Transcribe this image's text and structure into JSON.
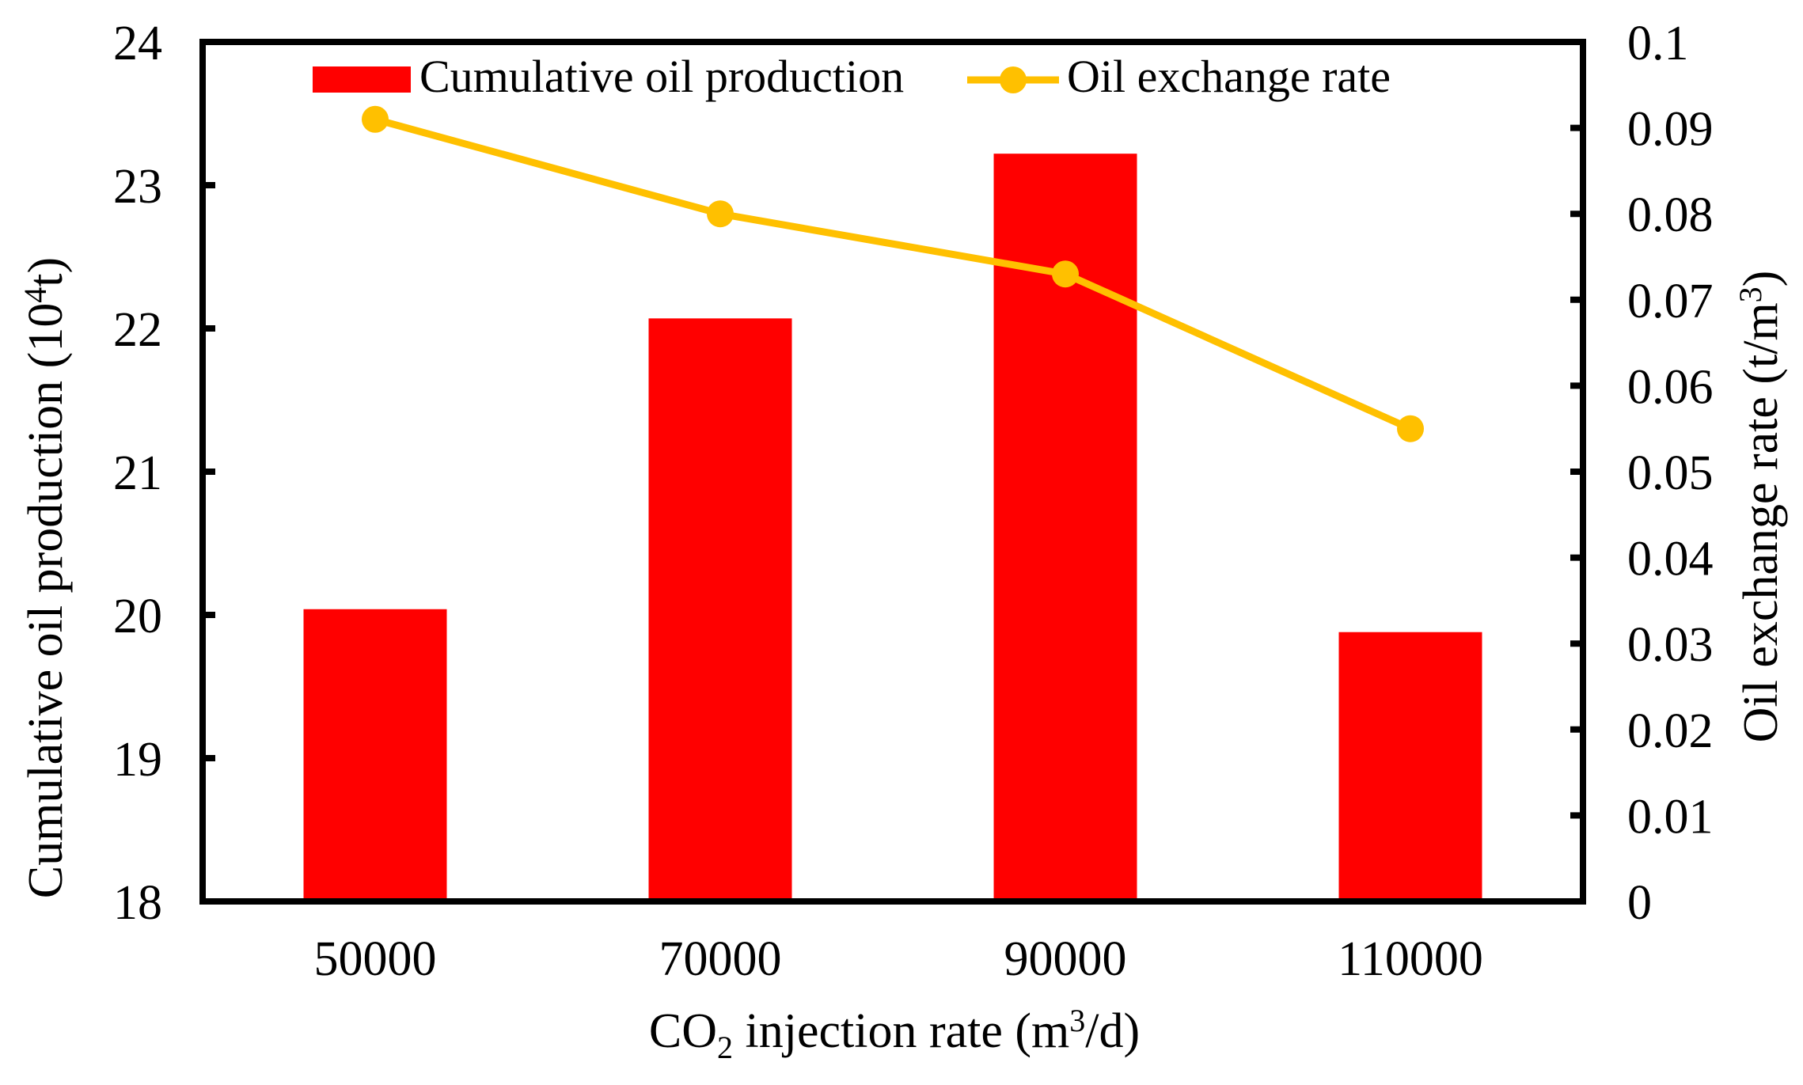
{
  "chart_data": {
    "type": "bar+line combo",
    "categories": [
      "50000",
      "70000",
      "90000",
      "110000"
    ],
    "series": [
      {
        "name": "Cumulative oil production",
        "type": "bar",
        "axis": "left",
        "color": "#FF0000",
        "values": [
          20.04,
          22.07,
          23.22,
          19.88
        ]
      },
      {
        "name": "Oil exchange rate",
        "type": "line",
        "axis": "right",
        "color": "#FFC000",
        "values": [
          0.091,
          0.08,
          0.073,
          0.055
        ]
      }
    ],
    "x_axis": {
      "title": "CO₂ injection rate (m³/d)",
      "title_segments": [
        {
          "t": "CO"
        },
        {
          "t": "2",
          "sub": true
        },
        {
          "t": " injection rate (m"
        },
        {
          "t": "3",
          "sup": true
        },
        {
          "t": "/d)"
        }
      ],
      "tick_labels": [
        "50000",
        "70000",
        "90000",
        "110000"
      ]
    },
    "left_axis": {
      "title": "Cumulative oil production (10⁴t)",
      "title_segments": [
        {
          "t": "Cumulative oil production (10"
        },
        {
          "t": "4",
          "sup": true
        },
        {
          "t": "t)"
        }
      ],
      "min": 18,
      "max": 24,
      "step": 1,
      "ticks": [
        "18",
        "19",
        "20",
        "21",
        "22",
        "23",
        "24"
      ]
    },
    "right_axis": {
      "title": "Oil exchange rate (t/m³)",
      "title_segments": [
        {
          "t": "Oil exchange rate (t/m"
        },
        {
          "t": "3",
          "sup": true
        },
        {
          "t": ")"
        }
      ],
      "min": 0,
      "max": 0.1,
      "step": 0.01,
      "ticks": [
        "0",
        "0.01",
        "0.02",
        "0.03",
        "0.04",
        "0.05",
        "0.06",
        "0.07",
        "0.08",
        "0.09",
        "0.1"
      ]
    },
    "legend": {
      "position": "top-inside",
      "entries": [
        "Cumulative oil production",
        "Oil exchange rate"
      ]
    },
    "grid": false,
    "colors": {
      "bar": "#FF0000",
      "line": "#FFC000",
      "axis": "#000000",
      "background": "#FFFFFF"
    }
  }
}
